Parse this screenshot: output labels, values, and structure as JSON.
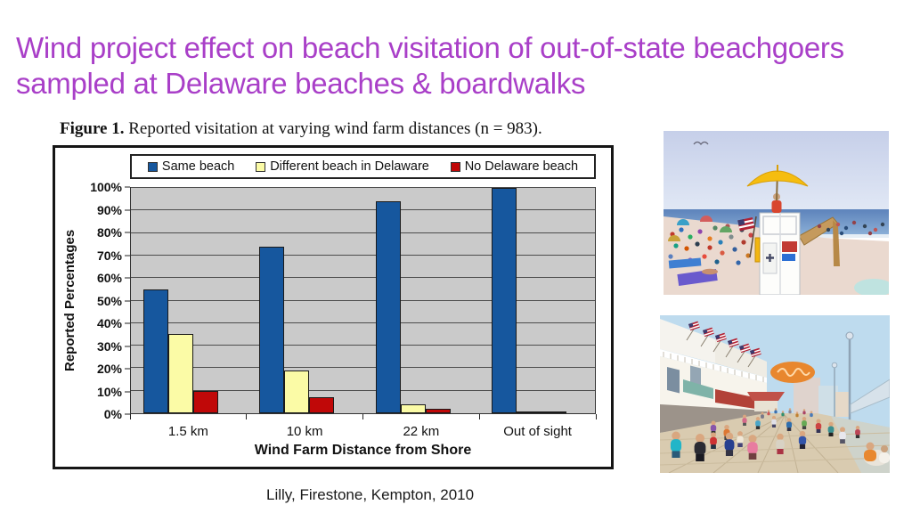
{
  "slide": {
    "title": "Wind project effect on beach visitation of out-of-state beachgoers sampled at Delaware beaches & boardwalks",
    "title_color": "#a93fc8",
    "citation": "Lilly, Firestone, Kempton, 2010"
  },
  "figure": {
    "caption_label": "Figure 1.",
    "caption_text": " Reported visitation at varying wind farm distances (n = 983)."
  },
  "photos": {
    "top": "crowded beach with white lifeguard stand and yellow umbrella",
    "bottom": "crowded beach boardwalk with shops and american flags"
  },
  "chart_data": {
    "type": "bar",
    "categories": [
      "1.5 km",
      "10 km",
      "22 km",
      "Out of sight"
    ],
    "series": [
      {
        "name": "Same beach",
        "color": "#16579e",
        "values": [
          55,
          74,
          94,
          100
        ]
      },
      {
        "name": "Different beach in Delaware",
        "color": "#fbfba6",
        "values": [
          35,
          19,
          4,
          0
        ]
      },
      {
        "name": "No Delaware beach",
        "color": "#c00808",
        "values": [
          10,
          7,
          2,
          0
        ]
      }
    ],
    "xlabel": "Wind Farm Distance from Shore",
    "ylabel": "Reported Percentages",
    "ylim": [
      0,
      100
    ],
    "ytick_step": 10,
    "ytick_suffix": "%",
    "grid": true,
    "legend_position": "top",
    "plot_background": "#cacaca"
  }
}
